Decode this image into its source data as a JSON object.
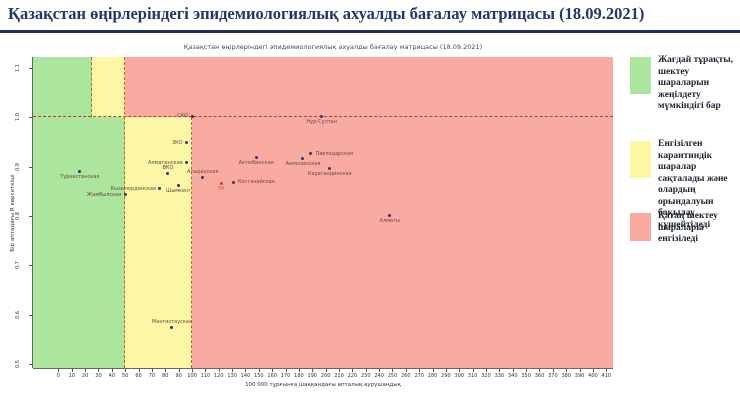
{
  "page": {
    "title": "Қазақстан өңірлеріндегі эпидемиологиялық ахуалды бағалау матрицасы  (18.09.2021)"
  },
  "legend": {
    "items": [
      {
        "color": "#abe69c",
        "text": "Жағдай тұрақты, шектеу шараларын жеңілдету мүмкіндігі бар"
      },
      {
        "color": "#fcf7a5",
        "text": "Енгізілген карантиндік шаралар сақталады және олардың орындалуын бақылау күшейтіледі"
      },
      {
        "color": "#f9aaa1",
        "text": "Қатаң шектеу шаралары енгізіледі"
      }
    ]
  },
  "chart_data": {
    "type": "scatter",
    "title": "Қазақстан өңірлеріндегі эпидемиологиялық ахуалды бағалау матрицасы  (18.09.2021)",
    "xlabel": "100 000 тұрғынға шаққандағы апталық аурушаңдық",
    "ylabel": "Бір аптадағы R көрсеткіші",
    "xlim": [
      -19,
      415
    ],
    "ylim": [
      0.492,
      1.122
    ],
    "x_ticks": [
      0,
      10,
      20,
      30,
      40,
      50,
      60,
      70,
      80,
      90,
      100,
      110,
      120,
      130,
      140,
      150,
      160,
      170,
      180,
      190,
      200,
      210,
      220,
      230,
      240,
      250,
      260,
      270,
      280,
      290,
      300,
      310,
      320,
      330,
      340,
      350,
      360,
      370,
      380,
      390,
      400,
      410
    ],
    "y_ticks": [
      "0.5",
      "0.6",
      "0.7",
      "0.8",
      "0.9",
      "1.0",
      "1.1"
    ],
    "grid": false,
    "legend_position": "right",
    "point_color": "#34347c",
    "label_color": "#6e4545",
    "zones": [
      {
        "color": "#abe69c",
        "x0": -19,
        "x1": 25,
        "y0": 1.0,
        "y1": 1.122
      },
      {
        "color": "#fcf7a5",
        "x0": 25,
        "x1": 50,
        "y0": 1.0,
        "y1": 1.122
      },
      {
        "color": "#f9aaa1",
        "x0": 50,
        "x1": 415,
        "y0": 1.0,
        "y1": 1.122
      },
      {
        "color": "#abe69c",
        "x0": -19,
        "x1": 50,
        "y0": 0.492,
        "y1": 1.0
      },
      {
        "color": "#fcf7a5",
        "x0": 50,
        "x1": 100,
        "y0": 0.492,
        "y1": 1.0
      },
      {
        "color": "#f9aaa1",
        "x0": 100,
        "x1": 415,
        "y0": 0.492,
        "y1": 1.0
      }
    ],
    "dashed_lines": [
      {
        "orient": "h",
        "y": 1.0,
        "x0": -19,
        "x1": 415,
        "color": "#c0392b"
      },
      {
        "orient": "v",
        "x": 25,
        "y0": 1.0,
        "y1": 1.122,
        "color": "#d4552e"
      },
      {
        "orient": "v",
        "x": 50,
        "y0": 0.492,
        "y1": 1.122,
        "color": "#d4552e"
      },
      {
        "orient": "v",
        "x": 100,
        "y0": 0.492,
        "y1": 1.0,
        "color": "#d4552e"
      }
    ],
    "points": [
      {
        "name": "Туркестанская",
        "x": 16,
        "y": 0.89,
        "pos": "below"
      },
      {
        "name": "Жамбылская",
        "x": 50,
        "y": 0.843,
        "pos": "left"
      },
      {
        "name": "Кызылординская",
        "x": 76,
        "y": 0.855,
        "pos": "left"
      },
      {
        "name": "ВКО",
        "x": 82,
        "y": 0.886,
        "pos": "above"
      },
      {
        "name": "Шымкент",
        "x": 90,
        "y": 0.862,
        "pos": "below"
      },
      {
        "name": "Алматинская",
        "x": 96,
        "y": 0.908,
        "pos": "left"
      },
      {
        "name": "ЗКО",
        "x": 96,
        "y": 0.948,
        "pos": "left"
      },
      {
        "name": "СКО",
        "x": 100,
        "y": 1.002,
        "pos": "left"
      },
      {
        "name": "Мангистауская",
        "x": 85,
        "y": 0.574,
        "pos": "above"
      },
      {
        "name": "Атырауская",
        "x": 108,
        "y": 0.878,
        "pos": "above"
      },
      {
        "name": "РК",
        "x": 122,
        "y": 0.866,
        "pos": "below",
        "color": "#e0553a",
        "dot": "#c0452a"
      },
      {
        "name": "Костанайская",
        "x": 131,
        "y": 0.868,
        "pos": "right"
      },
      {
        "name": "Актюбинская",
        "x": 148,
        "y": 0.918,
        "pos": "below"
      },
      {
        "name": "Акмолинская",
        "x": 183,
        "y": 0.916,
        "pos": "below"
      },
      {
        "name": "Павлодарская",
        "x": 189,
        "y": 0.926,
        "pos": "right"
      },
      {
        "name": "Карагандинская",
        "x": 203,
        "y": 0.896,
        "pos": "below"
      },
      {
        "name": "Нұр-Сұлтан",
        "x": 197,
        "y": 1.002,
        "pos": "below"
      },
      {
        "name": "Алматы",
        "x": 248,
        "y": 0.8,
        "pos": "below"
      }
    ]
  }
}
